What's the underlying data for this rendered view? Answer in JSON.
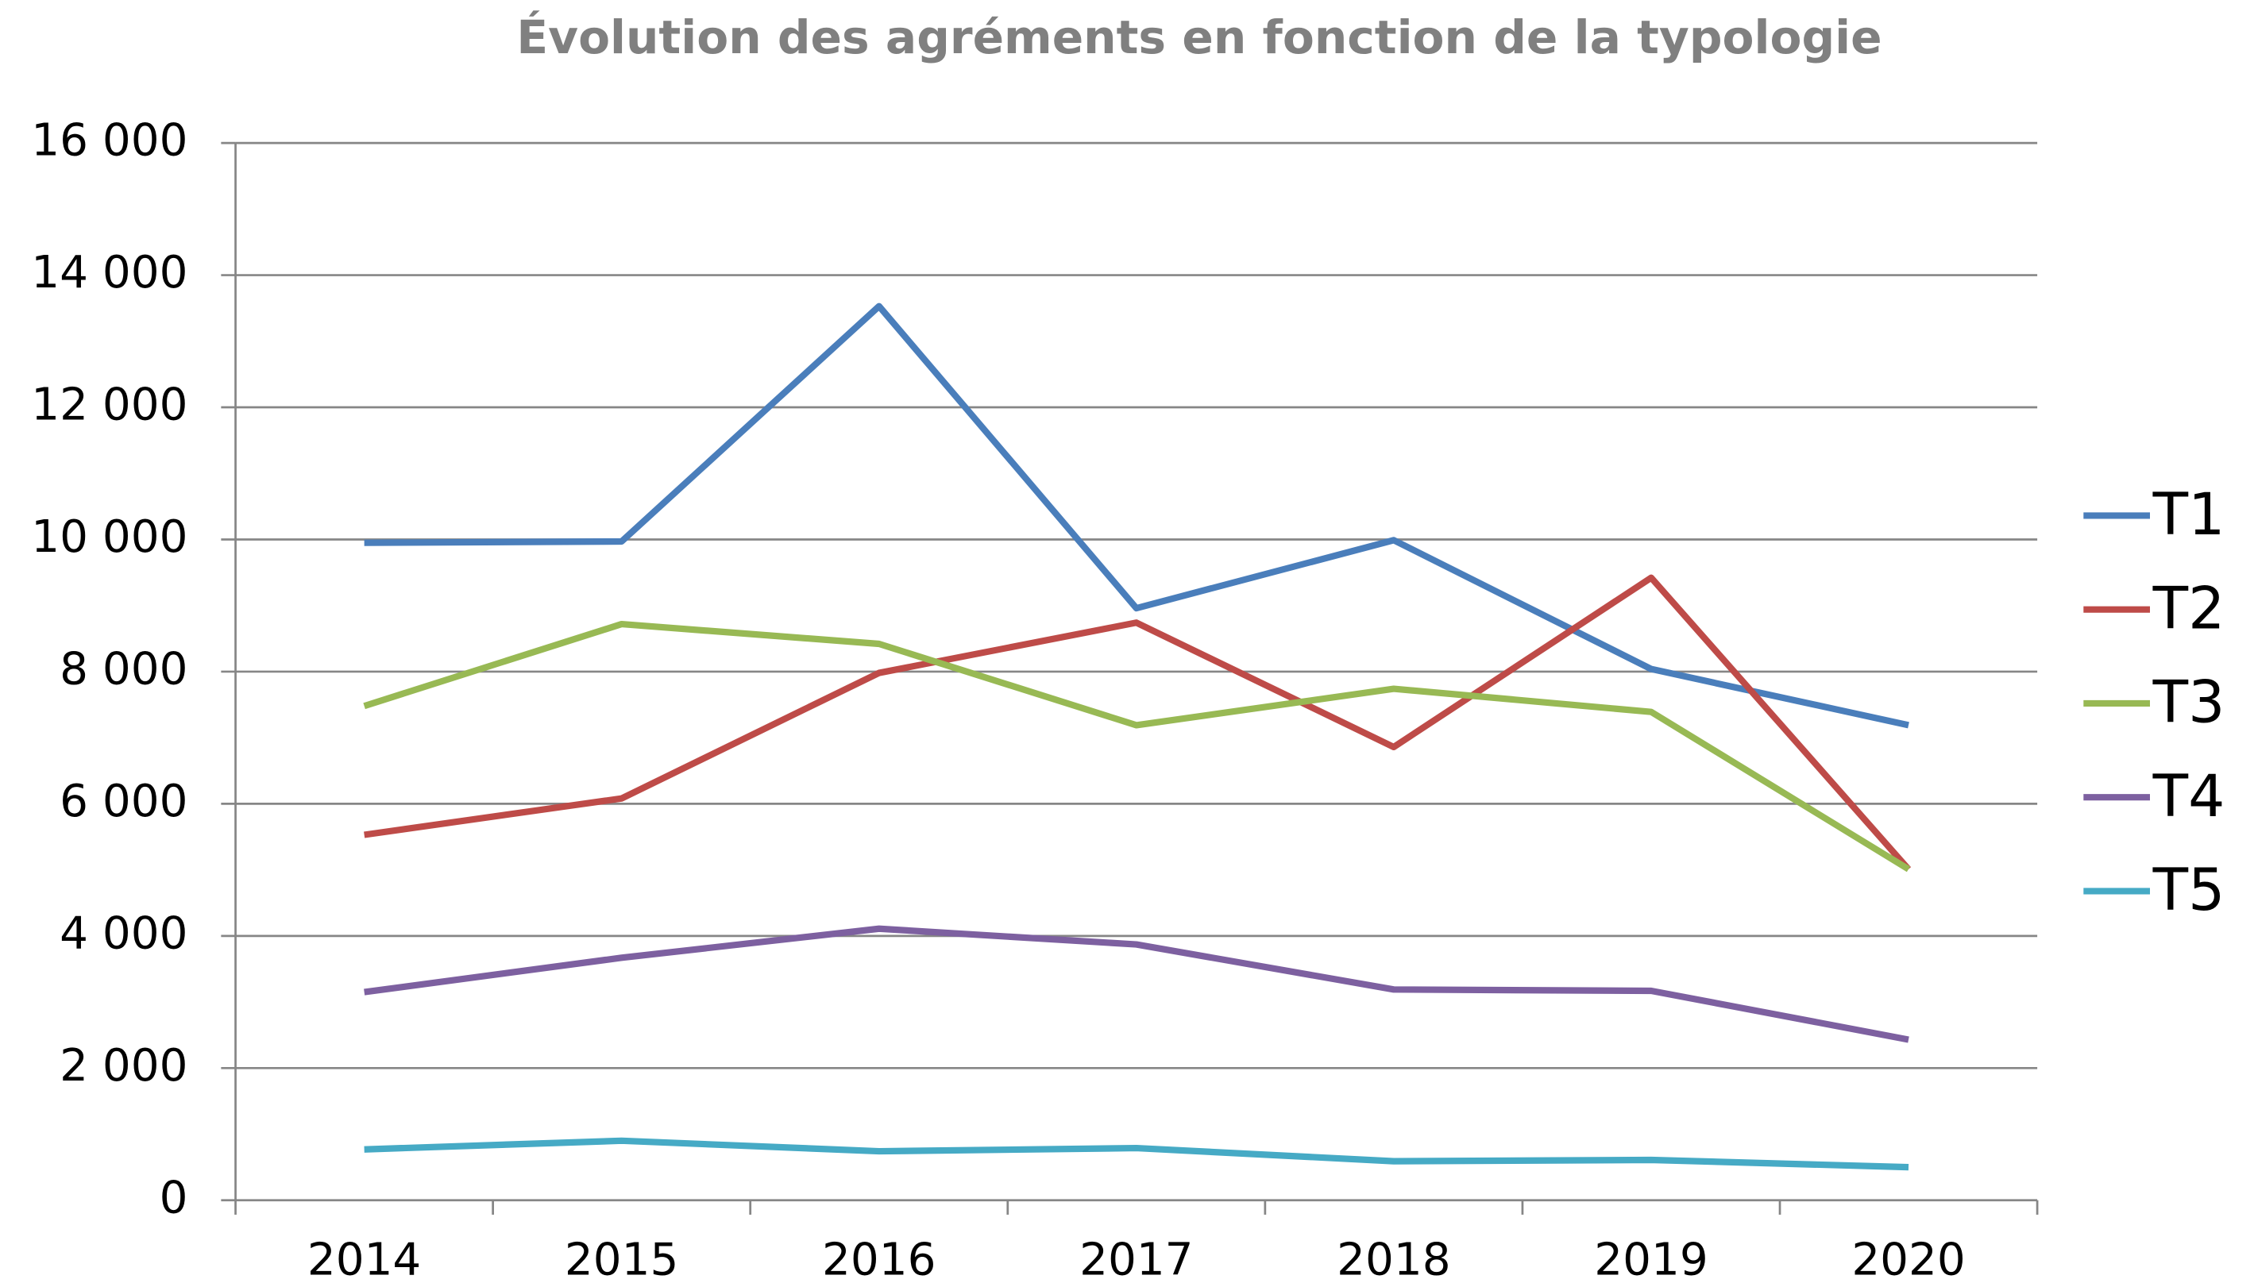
{
  "chart_data": {
    "type": "line",
    "title": "Évolution des agréments en fonction de la typologie",
    "categories": [
      "2014",
      "2015",
      "2016",
      "2017",
      "2018",
      "2019",
      "2020"
    ],
    "series": [
      {
        "name": "T1",
        "color": "#4a7ebb",
        "values": [
          9950,
          9970,
          13530,
          8960,
          9990,
          8040,
          7190
        ]
      },
      {
        "name": "T2",
        "color": "#be4b48",
        "values": [
          5530,
          6080,
          7980,
          8740,
          6860,
          9420,
          5010
        ]
      },
      {
        "name": "T3",
        "color": "#98b954",
        "values": [
          7480,
          8720,
          8420,
          7190,
          7740,
          7390,
          5010
        ]
      },
      {
        "name": "T4",
        "color": "#7d60a0",
        "values": [
          3150,
          3670,
          4110,
          3870,
          3190,
          3170,
          2430
        ]
      },
      {
        "name": "T5",
        "color": "#46aac5",
        "values": [
          770,
          900,
          740,
          790,
          590,
          610,
          500
        ]
      }
    ],
    "ylim": [
      0,
      16000
    ],
    "yticks": [
      0,
      {
        "value": 2000,
        "label": "2 000"
      },
      {
        "value": 4000,
        "label": "4 000"
      },
      {
        "value": 6000,
        "label": "6 000"
      },
      {
        "value": 8000,
        "label": "8 000"
      },
      {
        "value": 10000,
        "label": "10 000"
      },
      {
        "value": 12000,
        "label": "12 000"
      },
      {
        "value": 14000,
        "label": "14 000"
      },
      {
        "value": 16000,
        "label": "16 000"
      }
    ],
    "grid": true,
    "legend": "right"
  }
}
